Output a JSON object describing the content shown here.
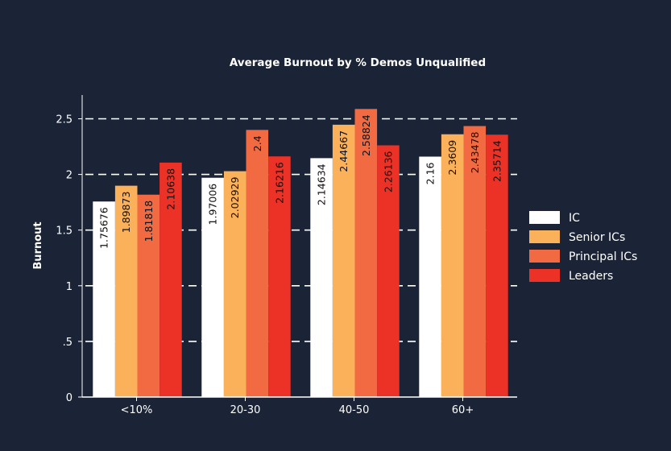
{
  "chart_data": {
    "type": "bar",
    "title": "Average Burnout by % Demos Unqualified",
    "xlabel": "",
    "ylabel": "Burnout",
    "categories": [
      "<10%",
      "20-30",
      "40-50",
      "60+"
    ],
    "ylim": [
      0,
      2.5
    ],
    "yticks": [
      0,
      0.5,
      1,
      1.5,
      2,
      2.5
    ],
    "ytick_labels": [
      "0",
      ".5",
      "1",
      "1.5",
      "2",
      "2.5"
    ],
    "grid": "horizontal-dashed",
    "legend_position": "right",
    "series": [
      {
        "name": "IC",
        "color": "#ffffff",
        "values": [
          1.75676,
          1.97006,
          2.14634,
          2.16
        ],
        "labels": [
          "1.75676",
          "1.97006",
          "2.14634",
          "2.16"
        ]
      },
      {
        "name": "Senior ICs",
        "color": "#fbb05a",
        "values": [
          1.89873,
          2.02929,
          2.44667,
          2.3609
        ],
        "labels": [
          "1.89873",
          "2.02929",
          "2.44667",
          "2.3609"
        ]
      },
      {
        "name": "Principal ICs",
        "color": "#f26a42",
        "values": [
          1.81818,
          2.4,
          2.58824,
          2.43478
        ],
        "labels": [
          "1.81818",
          "2.4",
          "2.58824",
          "2.43478"
        ]
      },
      {
        "name": "Leaders",
        "color": "#ec3227",
        "values": [
          2.10638,
          2.16216,
          2.26136,
          2.35714
        ],
        "labels": [
          "2.10638",
          "2.16216",
          "2.26136",
          "2.35714"
        ]
      }
    ]
  }
}
